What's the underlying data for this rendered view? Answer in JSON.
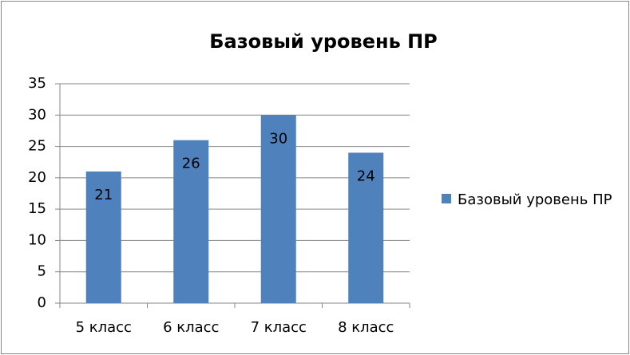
{
  "chart_data": {
    "type": "bar",
    "title": "Базовый уровень ПР",
    "categories": [
      "5 класс",
      "6 класс",
      "7 класс",
      "8 класс"
    ],
    "series": [
      {
        "name": "Базовый уровень ПР",
        "color": "#4f81bd",
        "values": [
          21,
          26,
          30,
          24
        ]
      }
    ],
    "ylim": [
      0,
      35
    ],
    "yticks": [
      0,
      5,
      10,
      15,
      20,
      25,
      30,
      35
    ],
    "grid": true,
    "legend": "right",
    "data_labels": true
  }
}
